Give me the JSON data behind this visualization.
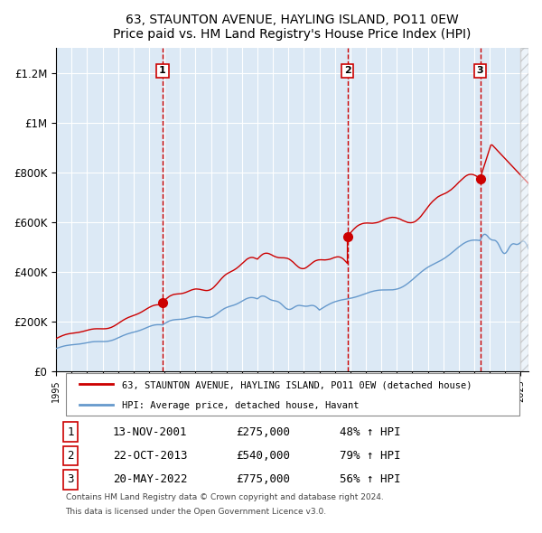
{
  "title": "63, STAUNTON AVENUE, HAYLING ISLAND, PO11 0EW",
  "subtitle": "Price paid vs. HM Land Registry's House Price Index (HPI)",
  "bg_color": "#dce9f5",
  "plot_bg_color": "#dce9f5",
  "red_line_color": "#cc0000",
  "blue_line_color": "#6699cc",
  "grid_color": "#ffffff",
  "dashed_line_color": "#cc0000",
  "legend_label_red": "63, STAUNTON AVENUE, HAYLING ISLAND, PO11 0EW (detached house)",
  "legend_label_blue": "HPI: Average price, detached house, Havant",
  "transactions": [
    {
      "num": 1,
      "date": "13-NOV-2001",
      "price": 275000,
      "year": 2001.87,
      "pct": "48%",
      "dir": "↑"
    },
    {
      "num": 2,
      "date": "22-OCT-2013",
      "price": 540000,
      "year": 2013.81,
      "pct": "79%",
      "dir": "↑"
    },
    {
      "num": 3,
      "date": "20-MAY-2022",
      "price": 775000,
      "year": 2022.38,
      "pct": "56%",
      "dir": "↑"
    }
  ],
  "footer1": "Contains HM Land Registry data © Crown copyright and database right 2024.",
  "footer2": "This data is licensed under the Open Government Licence v3.0.",
  "ylim": [
    0,
    1300000
  ],
  "xlim_start": 1995.0,
  "xlim_end": 2025.5
}
